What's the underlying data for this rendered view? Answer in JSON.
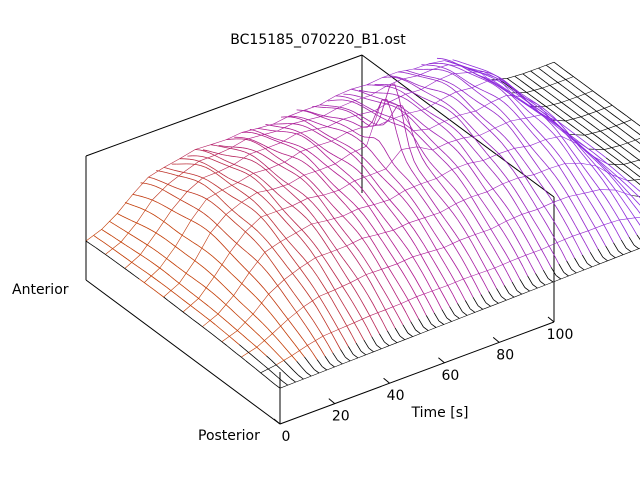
{
  "chart_data": {
    "type": "surface",
    "title": "BC15185_070220_B1.ost",
    "xlabel": "Time [s]",
    "ylabel_top": "Anterior",
    "ylabel_bottom": "Posterior",
    "xlim": [
      0,
      100
    ],
    "x_ticks": [
      "0",
      "20",
      "40",
      "60",
      "80",
      "100"
    ],
    "x_tick_values": [
      0,
      20,
      40,
      60,
      80,
      100
    ],
    "grid": false,
    "colors": {
      "baseline": "#000000",
      "peak": "#c23a00",
      "mid": "#b0168a",
      "late": "#8a2be2"
    },
    "surface": {
      "description_units": "time 0-100 s, position anterior(0) to posterior(1)",
      "onset_time": 8,
      "offset_time": 82,
      "plateau_start": 22,
      "spike_time": 48,
      "spike_position": 0.42
    }
  }
}
